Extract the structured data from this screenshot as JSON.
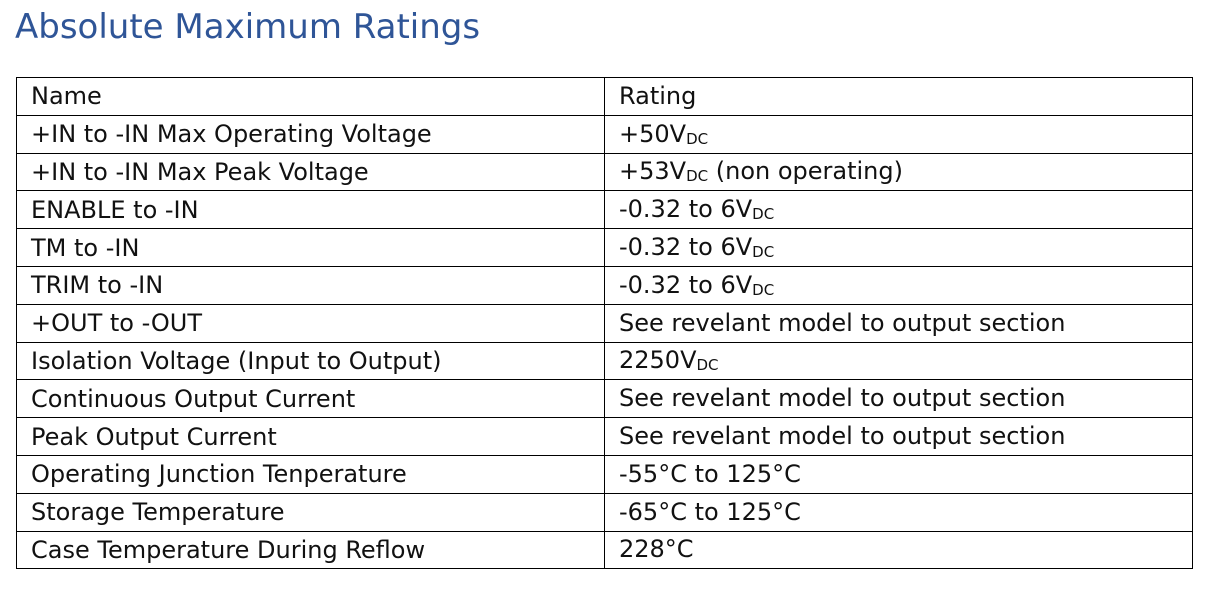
{
  "title": "Absolute Maximum Ratings",
  "table": {
    "headers": {
      "name": "Name",
      "rating": "Rating"
    },
    "rows": [
      {
        "name": "+IN to -IN Max Operating Voltage",
        "rating": "+50V",
        "sub": "DC",
        "suffix": ""
      },
      {
        "name": "+IN to -IN Max Peak Voltage",
        "rating": "+53V",
        "sub": "DC",
        "suffix": " (non operating)"
      },
      {
        "name": "ENABLE to -IN",
        "rating": "-0.32 to 6V",
        "sub": "DC",
        "suffix": ""
      },
      {
        "name": "TM to -IN",
        "rating": "-0.32 to 6V",
        "sub": "DC",
        "suffix": ""
      },
      {
        "name": "TRIM to -IN",
        "rating": "-0.32 to 6V",
        "sub": "DC",
        "suffix": ""
      },
      {
        "name": "+OUT to -OUT",
        "rating": "See revelant model to output section",
        "sub": "",
        "suffix": ""
      },
      {
        "name": "Isolation Voltage (Input to Output)",
        "rating": "2250V",
        "sub": "DC",
        "suffix": ""
      },
      {
        "name": "Continuous Output Current",
        "rating": "See revelant model to output section",
        "sub": "",
        "suffix": ""
      },
      {
        "name": "Peak Output Current",
        "rating": "See revelant model to output section",
        "sub": "",
        "suffix": ""
      },
      {
        "name": "Operating Junction Tenperature",
        "rating": "-55°C to 125°C",
        "sub": "",
        "suffix": ""
      },
      {
        "name": "Storage Temperature",
        "rating": "-65°C to 125°C",
        "sub": "",
        "suffix": ""
      },
      {
        "name": "Case Temperature During Reflow",
        "rating": "228°C",
        "sub": "",
        "suffix": ""
      }
    ]
  }
}
